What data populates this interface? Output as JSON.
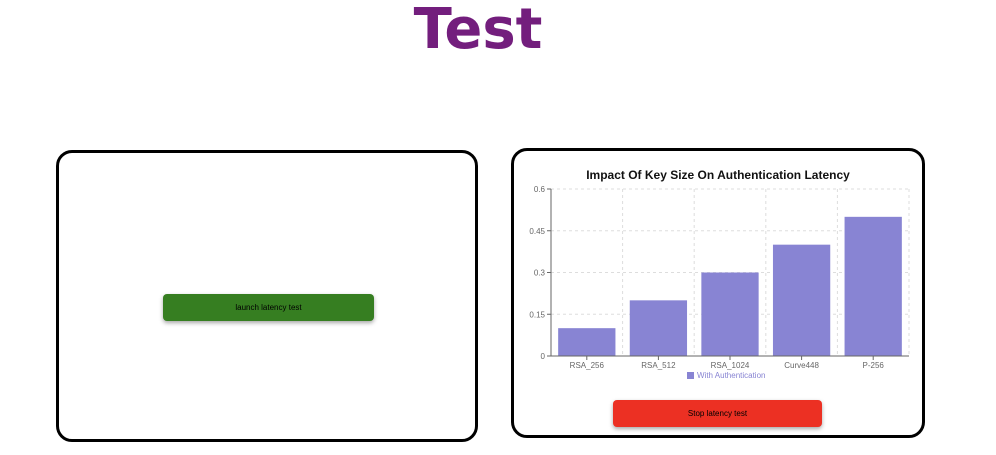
{
  "header": {
    "title": "Test"
  },
  "left_panel": {
    "launch_button_label": "launch latency test",
    "launch_button_color": "#367e21"
  },
  "right_panel": {
    "stop_button_label": "Stop latency test",
    "stop_button_color": "#ec3023"
  },
  "colors": {
    "title": "#731e7d",
    "bar": "#8884d3"
  },
  "chart_data": {
    "type": "bar",
    "title": "Impact Of Key Size On Authentication Latency",
    "categories": [
      "RSA_256",
      "RSA_512",
      "RSA_1024",
      "Curve448",
      "P-256"
    ],
    "series": [
      {
        "name": "With Authentication",
        "values": [
          0.1,
          0.2,
          0.3,
          0.4,
          0.5
        ],
        "color": "#8884d3"
      }
    ],
    "yticks": [
      "0",
      "0.15",
      "0.3",
      "0.45",
      "0.6"
    ],
    "ylim": [
      0,
      0.6
    ],
    "xlabel": "",
    "ylabel": "",
    "grid": true,
    "legend": "bottom"
  }
}
